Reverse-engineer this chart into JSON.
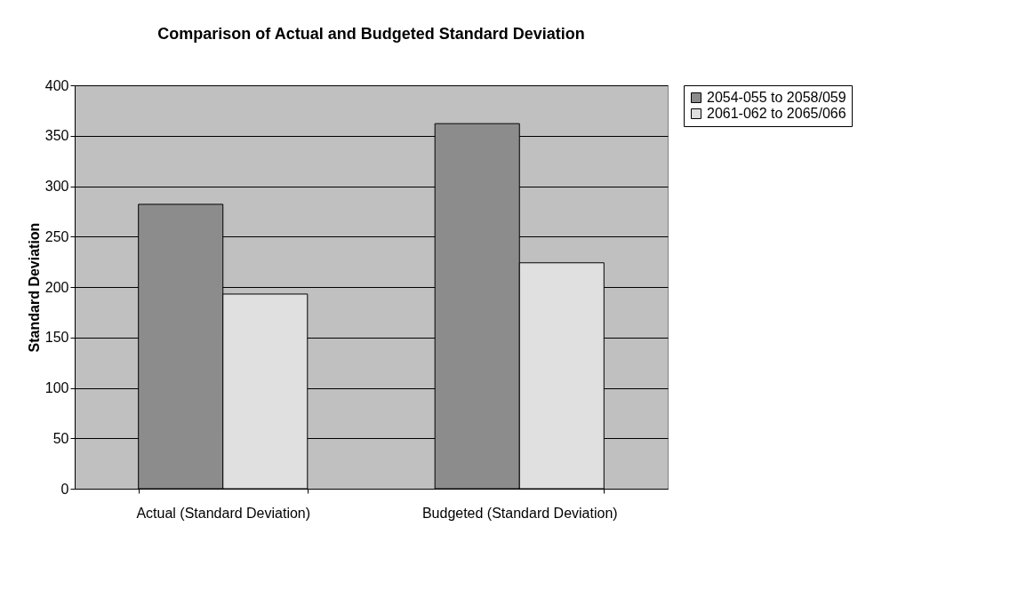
{
  "chart_data": {
    "type": "bar",
    "title": "Comparison of Actual and Budgeted Standard Deviation",
    "ylabel": "Standard Deviation",
    "categories": [
      "Actual (Standard Deviation)",
      "Budgeted (Standard Deviation)"
    ],
    "series": [
      {
        "name": "2054-055 to 2058/059",
        "color": "#8c8c8c",
        "values": [
          282,
          362
        ]
      },
      {
        "name": "2061-062 to 2065/066",
        "color": "#e0e0e0",
        "values": [
          193,
          224
        ]
      }
    ],
    "ylim": [
      0,
      400
    ],
    "yticks": [
      0,
      50,
      100,
      150,
      200,
      250,
      300,
      350,
      400
    ],
    "grid": "y",
    "legend": "right"
  }
}
